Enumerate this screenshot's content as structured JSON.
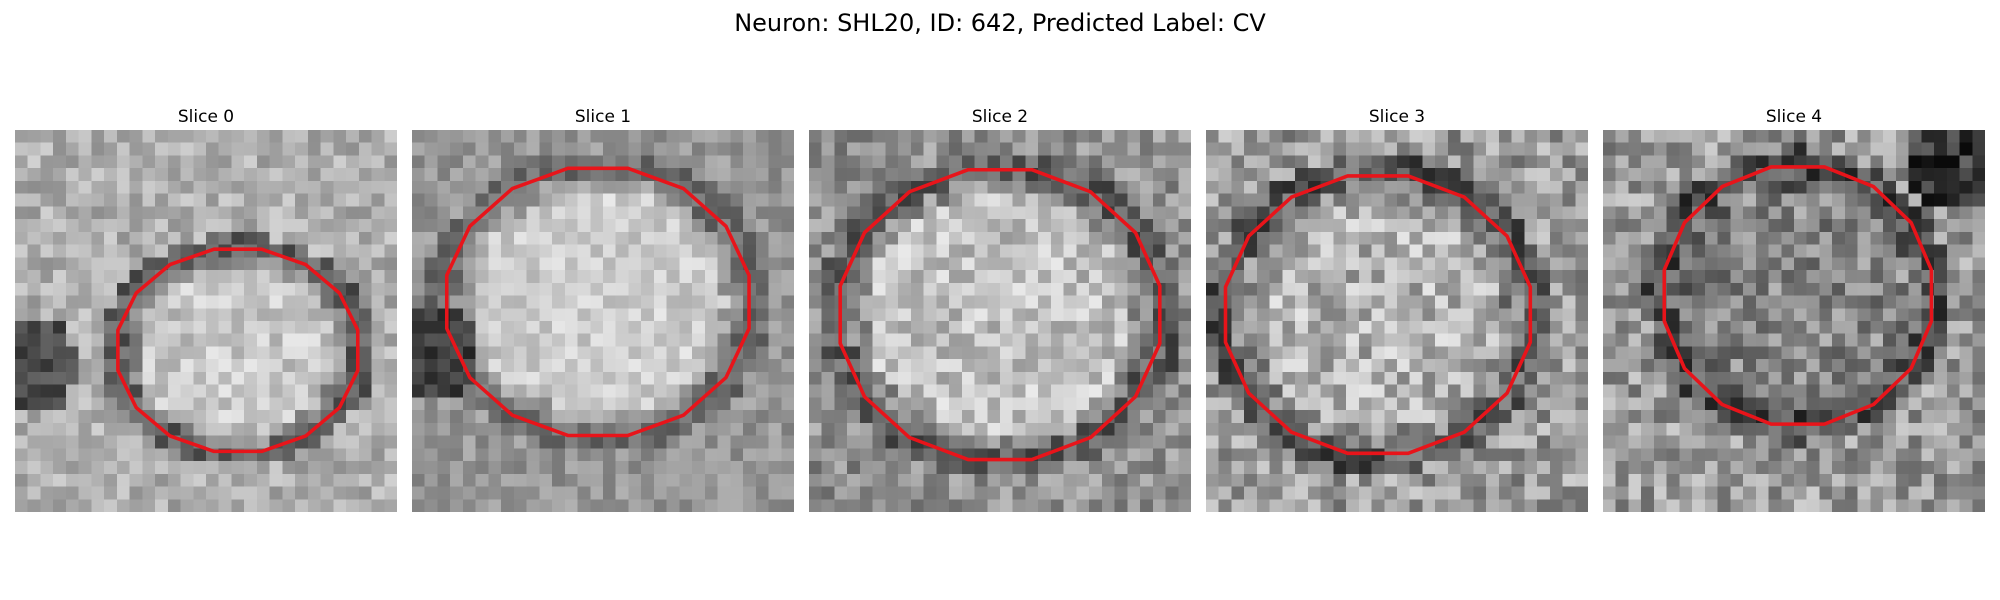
{
  "figure": {
    "title": "Neuron: SHL20, ID: 642, Predicted Label: CV"
  },
  "colors": {
    "contour": "#e8141a",
    "background": "#ffffff"
  },
  "panels": [
    {
      "title": "Slice 0"
    },
    {
      "title": "Slice 1"
    },
    {
      "title": "Slice 2"
    },
    {
      "title": "Slice 3"
    },
    {
      "title": "Slice 4"
    }
  ]
}
